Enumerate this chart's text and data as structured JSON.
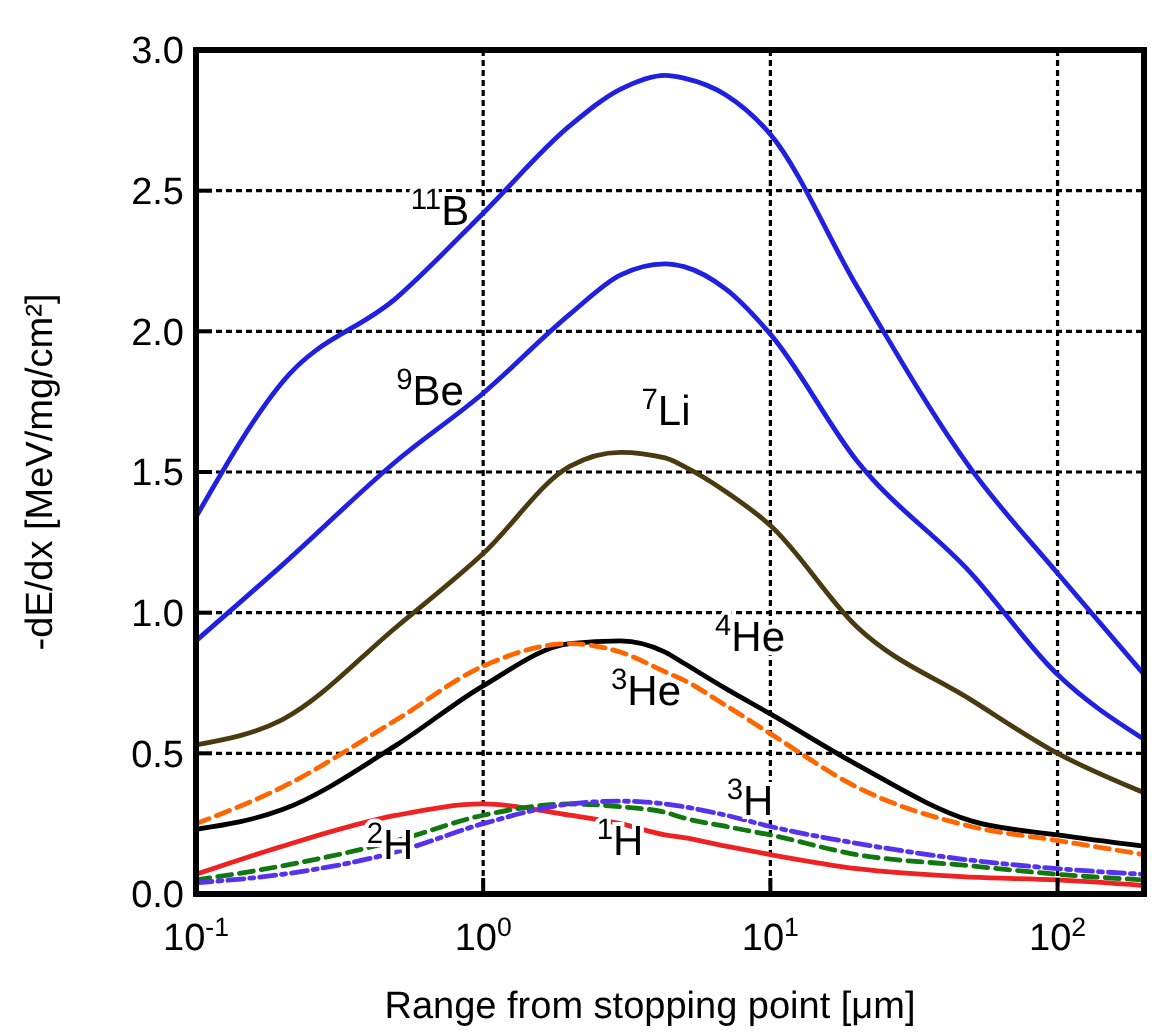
{
  "chart_data": {
    "type": "line",
    "xlabel": "Range from stopping point [μm]",
    "ylabel": "-dE/dx [MeV/mg/cm²]",
    "log": "x",
    "grid": true,
    "marker": "none",
    "xlim": [
      0.1,
      200
    ],
    "xticks": [
      {
        "value": 0.1,
        "label": "10$^{-1}$"
      },
      {
        "value": 1,
        "label": "10$^{0}$"
      },
      {
        "value": 10,
        "label": "10$^{1}$"
      },
      {
        "value": 100,
        "label": "10$^{2}$"
      }
    ],
    "ylim": [
      0,
      3
    ],
    "yticks": [
      {
        "value": 0,
        "label": "0.0"
      },
      0.5,
      {
        "value": 1,
        "label": "1.0"
      },
      1.5,
      {
        "value": 2,
        "label": "2.0"
      },
      2.5,
      {
        "value": 3,
        "label": "3.0"
      }
    ],
    "x": [
      0.1,
      0.2,
      0.5,
      1,
      2,
      3,
      4.3,
      5,
      7,
      10,
      20,
      50,
      100,
      200
    ],
    "series": [
      {
        "name": "$^{11}$B",
        "color": "#2020e0",
        "line_style": "solid",
        "values": [
          1.34,
          1.82,
          2.12,
          2.42,
          2.73,
          2.86,
          2.91,
          2.9,
          2.84,
          2.7,
          2.16,
          1.51,
          1.14,
          0.78
        ]
      },
      {
        "name": "$^{9}$Be",
        "color": "#2020e0",
        "line_style": "solid",
        "values": [
          0.9,
          1.17,
          1.54,
          1.78,
          2.06,
          2.2,
          2.24,
          2.23,
          2.15,
          1.99,
          1.54,
          1.14,
          0.78,
          0.55
        ]
      },
      {
        "name": "$^{7}$Li",
        "color": "#4a3a10",
        "line_style": "solid",
        "values": [
          0.53,
          0.62,
          0.95,
          1.21,
          1.52,
          1.57,
          1.55,
          1.52,
          1.43,
          1.31,
          0.95,
          0.69,
          0.5,
          0.36
        ]
      },
      {
        "name": "$^{4}$He",
        "color": "#000000",
        "line_style": "solid",
        "values": [
          0.23,
          0.3,
          0.53,
          0.74,
          0.89,
          0.9,
          0.86,
          0.82,
          0.73,
          0.64,
          0.46,
          0.26,
          0.21,
          0.17
        ]
      },
      {
        "name": "$^{3}$He",
        "color": "#ff6600",
        "line_style": "dashed",
        "values": [
          0.25,
          0.38,
          0.62,
          0.81,
          0.89,
          0.86,
          0.79,
          0.76,
          0.67,
          0.57,
          0.38,
          0.24,
          0.19,
          0.14
        ]
      },
      {
        "name": "$^{1}$H",
        "color": "#ee2222",
        "line_style": "solid",
        "values": [
          0.07,
          0.17,
          0.28,
          0.32,
          0.28,
          0.25,
          0.21,
          0.2,
          0.17,
          0.14,
          0.09,
          0.06,
          0.05,
          0.03
        ]
      },
      {
        "name": "$^{2}$H",
        "color": "#117711",
        "line_style": "dashed",
        "values": [
          0.05,
          0.1,
          0.19,
          0.28,
          0.32,
          0.31,
          0.29,
          0.27,
          0.24,
          0.21,
          0.14,
          0.1,
          0.07,
          0.05
        ]
      },
      {
        "name": "$^{3}$H",
        "color": "#5533ee",
        "line_style": "dotted",
        "values": [
          0.04,
          0.07,
          0.15,
          0.25,
          0.32,
          0.33,
          0.32,
          0.31,
          0.28,
          0.24,
          0.18,
          0.12,
          0.09,
          0.07
        ]
      }
    ]
  }
}
